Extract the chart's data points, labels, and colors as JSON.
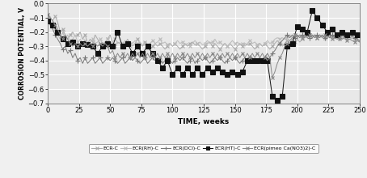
{
  "xlabel": "TIME, weeks",
  "ylabel": "CORROSION POTENTIAL, V",
  "xlim": [
    0,
    250
  ],
  "ylim": [
    -0.7,
    0.0
  ],
  "yticks": [
    0.0,
    -0.1,
    -0.2,
    -0.3,
    -0.4,
    -0.5,
    -0.6,
    -0.7
  ],
  "xticks": [
    0,
    25,
    50,
    75,
    100,
    125,
    150,
    175,
    200,
    225,
    250
  ],
  "legend_labels": [
    "ECR-C",
    "ECR(RH)-C",
    "ECR(DCl)-C",
    "ECR(HT)-C",
    "ECR(pimeo Ca(NO3)2)-C"
  ],
  "series": [
    {
      "name": "ECR-C",
      "color": "#aaaaaa",
      "marker": "x",
      "markersize": 3,
      "linewidth": 0.7,
      "x": [
        0,
        2,
        4,
        6,
        8,
        10,
        12,
        14,
        16,
        18,
        20,
        22,
        24,
        26,
        28,
        30,
        32,
        34,
        36,
        38,
        40,
        42,
        44,
        46,
        48,
        50,
        52,
        54,
        56,
        58,
        60,
        62,
        64,
        66,
        68,
        70,
        72,
        74,
        76,
        78,
        80,
        82,
        84,
        86,
        88,
        90,
        92,
        94,
        96,
        98,
        100,
        102,
        104,
        106,
        108,
        110,
        112,
        114,
        116,
        118,
        120,
        122,
        124,
        126,
        128,
        130,
        132,
        134,
        136,
        138,
        140,
        142,
        144,
        146,
        148,
        150,
        152,
        154,
        156,
        158,
        160,
        162,
        164,
        166,
        168,
        170,
        172,
        174,
        176,
        178,
        180,
        182,
        184,
        186,
        188,
        190,
        192,
        194,
        196,
        198,
        200,
        202,
        204,
        206,
        208,
        210,
        212,
        214,
        216,
        218,
        220,
        222,
        224,
        226,
        228,
        230,
        232,
        234,
        236,
        238,
        240,
        242,
        244,
        246,
        248,
        250
      ],
      "y": [
        -0.08,
        -0.1,
        -0.12,
        -0.09,
        -0.13,
        -0.2,
        -0.18,
        -0.22,
        -0.25,
        -0.22,
        -0.2,
        -0.23,
        -0.22,
        -0.2,
        -0.25,
        -0.22,
        -0.28,
        -0.25,
        -0.27,
        -0.22,
        -0.25,
        -0.28,
        -0.3,
        -0.27,
        -0.25,
        -0.22,
        -0.28,
        -0.3,
        -0.27,
        -0.28,
        -0.3,
        -0.28,
        -0.25,
        -0.28,
        -0.3,
        -0.28,
        -0.25,
        -0.28,
        -0.3,
        -0.27,
        -0.29,
        -0.32,
        -0.3,
        -0.28,
        -0.3,
        -0.28,
        -0.3,
        -0.32,
        -0.3,
        -0.28,
        -0.3,
        -0.28,
        -0.3,
        -0.32,
        -0.3,
        -0.28,
        -0.3,
        -0.28,
        -0.27,
        -0.29,
        -0.28,
        -0.3,
        -0.32,
        -0.3,
        -0.28,
        -0.27,
        -0.3,
        -0.28,
        -0.3,
        -0.32,
        -0.3,
        -0.28,
        -0.3,
        -0.28,
        -0.3,
        -0.32,
        -0.3,
        -0.28,
        -0.3,
        -0.28,
        -0.29,
        -0.28,
        -0.3,
        -0.32,
        -0.3,
        -0.28,
        -0.3,
        -0.28,
        -0.3,
        -0.32,
        -0.3,
        -0.28,
        -0.26,
        -0.28,
        -0.3,
        -0.28,
        -0.26,
        -0.28,
        -0.25,
        -0.27,
        -0.25,
        -0.27,
        -0.25,
        -0.22,
        -0.24,
        -0.22,
        -0.24,
        -0.22,
        -0.24,
        -0.22,
        -0.23,
        -0.24,
        -0.23,
        -0.24,
        -0.23,
        -0.24,
        -0.23,
        -0.25,
        -0.23,
        -0.25,
        -0.24,
        -0.25,
        -0.24,
        -0.25,
        -0.26,
        -0.27
      ]
    },
    {
      "name": "ECR(RH)-C",
      "color": "#bbbbbb",
      "marker": "x",
      "markersize": 3,
      "linewidth": 0.7,
      "x": [
        0,
        2,
        4,
        6,
        8,
        10,
        12,
        14,
        16,
        18,
        20,
        22,
        24,
        26,
        28,
        30,
        32,
        34,
        36,
        38,
        40,
        42,
        44,
        46,
        48,
        50,
        52,
        54,
        56,
        58,
        60,
        62,
        64,
        66,
        68,
        70,
        72,
        74,
        76,
        78,
        80,
        82,
        84,
        86,
        88,
        90,
        92,
        94,
        96,
        98,
        100,
        102,
        104,
        106,
        108,
        110,
        112,
        114,
        116,
        118,
        120,
        122,
        124,
        126,
        128,
        130,
        132,
        134,
        136,
        138,
        140,
        142,
        144,
        146,
        148,
        150,
        152,
        154,
        156,
        158,
        160,
        162,
        164,
        166,
        168,
        170,
        172,
        174,
        176,
        178,
        180,
        182,
        184,
        186,
        188,
        190,
        192,
        194,
        196,
        198,
        200,
        202,
        204,
        206,
        208,
        210,
        212,
        214,
        216,
        218,
        220,
        222,
        224,
        226,
        228,
        230,
        232,
        234,
        236,
        238,
        240,
        242,
        244,
        246,
        248,
        250
      ],
      "y": [
        -0.1,
        -0.09,
        -0.13,
        -0.18,
        -0.22,
        -0.25,
        -0.2,
        -0.25,
        -0.22,
        -0.27,
        -0.25,
        -0.22,
        -0.27,
        -0.25,
        -0.28,
        -0.26,
        -0.28,
        -0.27,
        -0.25,
        -0.28,
        -0.27,
        -0.25,
        -0.28,
        -0.27,
        -0.25,
        -0.28,
        -0.27,
        -0.25,
        -0.28,
        -0.27,
        -0.28,
        -0.26,
        -0.28,
        -0.3,
        -0.28,
        -0.26,
        -0.28,
        -0.27,
        -0.29,
        -0.28,
        -0.3,
        -0.28,
        -0.26,
        -0.28,
        -0.27,
        -0.25,
        -0.28,
        -0.27,
        -0.29,
        -0.28,
        -0.3,
        -0.28,
        -0.26,
        -0.28,
        -0.27,
        -0.29,
        -0.28,
        -0.3,
        -0.28,
        -0.26,
        -0.28,
        -0.27,
        -0.29,
        -0.28,
        -0.26,
        -0.28,
        -0.27,
        -0.25,
        -0.28,
        -0.27,
        -0.29,
        -0.28,
        -0.3,
        -0.28,
        -0.26,
        -0.28,
        -0.27,
        -0.29,
        -0.28,
        -0.3,
        -0.28,
        -0.26,
        -0.28,
        -0.27,
        -0.29,
        -0.28,
        -0.3,
        -0.28,
        -0.26,
        -0.28,
        -0.27,
        -0.25,
        -0.24,
        -0.25,
        -0.24,
        -0.25,
        -0.24,
        -0.22,
        -0.24,
        -0.22,
        -0.23,
        -0.22,
        -0.23,
        -0.22,
        -0.24,
        -0.22,
        -0.23,
        -0.22,
        -0.24,
        -0.22,
        -0.23,
        -0.24,
        -0.23,
        -0.24,
        -0.23,
        -0.25,
        -0.23,
        -0.25,
        -0.24,
        -0.25,
        -0.23,
        -0.24,
        -0.23,
        -0.24,
        -0.25,
        -0.26
      ]
    },
    {
      "name": "ECR(DCl)-C",
      "color": "#777777",
      "marker": "+",
      "markersize": 4,
      "linewidth": 0.7,
      "x": [
        0,
        2,
        4,
        6,
        8,
        10,
        12,
        14,
        16,
        18,
        20,
        22,
        24,
        26,
        28,
        30,
        32,
        34,
        36,
        38,
        40,
        42,
        44,
        46,
        48,
        50,
        52,
        54,
        56,
        58,
        60,
        62,
        64,
        66,
        68,
        70,
        72,
        74,
        76,
        78,
        80,
        82,
        84,
        86,
        88,
        90,
        92,
        94,
        96,
        98,
        100,
        102,
        104,
        106,
        108,
        110,
        112,
        114,
        116,
        118,
        120,
        122,
        124,
        126,
        128,
        130,
        132,
        134,
        136,
        138,
        140,
        142,
        144,
        146,
        148,
        150,
        152,
        154,
        156,
        158,
        160,
        162,
        164,
        166,
        168,
        170,
        172,
        174,
        176,
        178,
        180,
        182,
        184,
        186,
        188,
        190,
        192,
        194,
        196,
        198,
        200,
        202,
        204,
        206,
        208,
        210,
        212,
        214,
        216,
        218,
        220,
        222,
        224,
        226,
        228,
        230,
        232,
        234,
        236,
        238,
        240,
        242,
        244,
        246,
        248,
        250
      ],
      "y": [
        -0.12,
        -0.15,
        -0.18,
        -0.22,
        -0.25,
        -0.28,
        -0.32,
        -0.3,
        -0.35,
        -0.33,
        -0.38,
        -0.35,
        -0.4,
        -0.38,
        -0.42,
        -0.38,
        -0.42,
        -0.4,
        -0.38,
        -0.42,
        -0.4,
        -0.38,
        -0.42,
        -0.4,
        -0.38,
        -0.4,
        -0.38,
        -0.4,
        -0.42,
        -0.4,
        -0.38,
        -0.42,
        -0.4,
        -0.38,
        -0.4,
        -0.38,
        -0.4,
        -0.42,
        -0.4,
        -0.38,
        -0.42,
        -0.4,
        -0.38,
        -0.4,
        -0.38,
        -0.4,
        -0.42,
        -0.4,
        -0.38,
        -0.4,
        -0.42,
        -0.4,
        -0.38,
        -0.4,
        -0.38,
        -0.4,
        -0.42,
        -0.4,
        -0.38,
        -0.42,
        -0.4,
        -0.38,
        -0.4,
        -0.38,
        -0.4,
        -0.42,
        -0.4,
        -0.38,
        -0.4,
        -0.38,
        -0.4,
        -0.42,
        -0.4,
        -0.38,
        -0.4,
        -0.38,
        -0.4,
        -0.42,
        -0.4,
        -0.38,
        -0.4,
        -0.38,
        -0.4,
        -0.42,
        -0.4,
        -0.38,
        -0.4,
        -0.38,
        -0.35,
        -0.38,
        -0.35,
        -0.33,
        -0.3,
        -0.28,
        -0.26,
        -0.24,
        -0.22,
        -0.24,
        -0.22,
        -0.24,
        -0.22,
        -0.24,
        -0.22,
        -0.24,
        -0.22,
        -0.24,
        -0.22,
        -0.24,
        -0.22,
        -0.24,
        -0.22,
        -0.24,
        -0.22,
        -0.24,
        -0.22,
        -0.24,
        -0.22,
        -0.24,
        -0.22,
        -0.24,
        -0.23,
        -0.24,
        -0.23,
        -0.24,
        -0.25,
        -0.26
      ]
    },
    {
      "name": "ECR(HT)-C",
      "color": "#111111",
      "marker": "s",
      "markersize": 4,
      "linewidth": 0.7,
      "x": [
        0,
        4,
        8,
        12,
        16,
        20,
        24,
        28,
        32,
        36,
        40,
        44,
        48,
        52,
        56,
        60,
        64,
        68,
        72,
        76,
        80,
        84,
        88,
        92,
        96,
        100,
        104,
        108,
        112,
        116,
        120,
        124,
        128,
        132,
        136,
        140,
        144,
        148,
        152,
        156,
        160,
        164,
        168,
        172,
        176,
        180,
        184,
        188,
        192,
        196,
        200,
        204,
        208,
        212,
        216,
        220,
        224,
        228,
        232,
        236,
        240,
        244,
        248
      ],
      "y": [
        -0.12,
        -0.15,
        -0.2,
        -0.25,
        -0.28,
        -0.27,
        -0.3,
        -0.28,
        -0.29,
        -0.3,
        -0.35,
        -0.3,
        -0.28,
        -0.3,
        -0.2,
        -0.3,
        -0.28,
        -0.35,
        -0.3,
        -0.35,
        -0.3,
        -0.35,
        -0.4,
        -0.45,
        -0.4,
        -0.5,
        -0.45,
        -0.5,
        -0.45,
        -0.5,
        -0.45,
        -0.5,
        -0.45,
        -0.48,
        -0.45,
        -0.48,
        -0.5,
        -0.48,
        -0.5,
        -0.48,
        -0.4,
        -0.4,
        -0.4,
        -0.4,
        -0.4,
        -0.65,
        -0.68,
        -0.65,
        -0.3,
        -0.28,
        -0.16,
        -0.18,
        -0.2,
        -0.05,
        -0.1,
        -0.15,
        -0.2,
        -0.18,
        -0.22,
        -0.2,
        -0.22,
        -0.2,
        -0.22
      ]
    },
    {
      "name": "ECR(pimeo Ca(NO3)2)-C",
      "color": "#888888",
      "marker": "x",
      "markersize": 3,
      "linewidth": 0.7,
      "x": [
        0,
        2,
        4,
        6,
        8,
        10,
        12,
        14,
        16,
        18,
        20,
        22,
        24,
        26,
        28,
        30,
        32,
        34,
        36,
        38,
        40,
        42,
        44,
        46,
        48,
        50,
        52,
        54,
        56,
        58,
        60,
        62,
        64,
        66,
        68,
        70,
        72,
        74,
        76,
        78,
        80,
        82,
        84,
        86,
        88,
        90,
        92,
        94,
        96,
        98,
        100,
        102,
        104,
        106,
        108,
        110,
        112,
        114,
        116,
        118,
        120,
        122,
        124,
        126,
        128,
        130,
        132,
        134,
        136,
        138,
        140,
        142,
        144,
        146,
        148,
        150,
        152,
        154,
        156,
        158,
        160,
        162,
        164,
        166,
        168,
        170,
        172,
        174,
        176,
        178,
        180,
        182,
        184,
        186,
        188,
        190,
        192,
        194,
        196,
        198,
        200,
        202,
        204,
        206,
        208,
        210,
        212,
        214,
        216,
        218,
        220,
        222,
        224,
        226,
        228,
        230,
        232,
        234,
        236,
        238,
        240,
        242,
        244,
        246,
        248,
        250
      ],
      "y": [
        -0.08,
        -0.1,
        -0.12,
        -0.15,
        -0.18,
        -0.22,
        -0.25,
        -0.22,
        -0.25,
        -0.28,
        -0.3,
        -0.28,
        -0.3,
        -0.28,
        -0.3,
        -0.28,
        -0.3,
        -0.28,
        -0.3,
        -0.28,
        -0.3,
        -0.28,
        -0.3,
        -0.28,
        -0.3,
        -0.35,
        -0.33,
        -0.38,
        -0.35,
        -0.38,
        -0.35,
        -0.38,
        -0.35,
        -0.38,
        -0.35,
        -0.38,
        -0.35,
        -0.38,
        -0.35,
        -0.38,
        -0.35,
        -0.38,
        -0.35,
        -0.38,
        -0.35,
        -0.38,
        -0.35,
        -0.38,
        -0.35,
        -0.38,
        -0.35,
        -0.38,
        -0.35,
        -0.38,
        -0.35,
        -0.38,
        -0.35,
        -0.38,
        -0.35,
        -0.38,
        -0.35,
        -0.38,
        -0.35,
        -0.38,
        -0.35,
        -0.38,
        -0.35,
        -0.38,
        -0.35,
        -0.38,
        -0.35,
        -0.38,
        -0.35,
        -0.38,
        -0.35,
        -0.38,
        -0.35,
        -0.38,
        -0.35,
        -0.38,
        -0.35,
        -0.38,
        -0.35,
        -0.38,
        -0.35,
        -0.38,
        -0.35,
        -0.38,
        -0.4,
        -0.38,
        -0.52,
        -0.48,
        -0.42,
        -0.38,
        -0.35,
        -0.3,
        -0.28,
        -0.26,
        -0.24,
        -0.22,
        -0.24,
        -0.22,
        -0.24,
        -0.22,
        -0.24,
        -0.22,
        -0.24,
        -0.22,
        -0.24,
        -0.22,
        -0.24,
        -0.22,
        -0.24,
        -0.22,
        -0.25,
        -0.24,
        -0.25,
        -0.24,
        -0.25,
        -0.24,
        -0.26,
        -0.25,
        -0.26,
        -0.27,
        -0.26,
        -0.27
      ]
    }
  ],
  "background_color": "#f0f0f0",
  "plot_bg_color": "#e8e8e8",
  "grid_color": "#ffffff",
  "font_family": "DejaVu Sans"
}
